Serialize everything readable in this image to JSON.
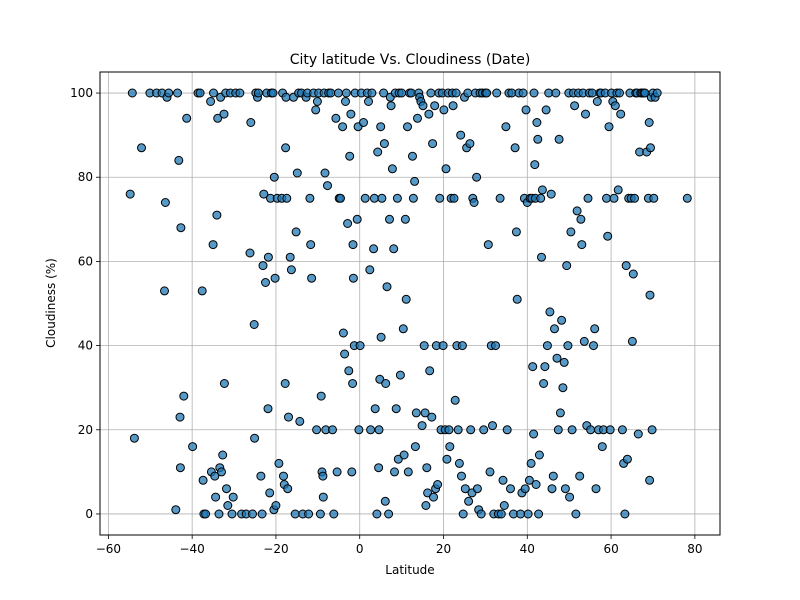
{
  "chart_data": {
    "type": "scatter",
    "title": "City latitude Vs. Cloudiness (Date)",
    "xlabel": "Latitude",
    "ylabel": "Cloudiness (%)",
    "xlim": [
      -62,
      86
    ],
    "ylim": [
      -5,
      105
    ],
    "x_ticks": [
      -60,
      -40,
      -20,
      0,
      20,
      40,
      60,
      80
    ],
    "y_ticks": [
      0,
      20,
      40,
      60,
      80,
      100
    ],
    "grid": true,
    "marker_color": "#1f77b4",
    "marker_edge_color": "#000000",
    "points": [
      [
        -54.8,
        76
      ],
      [
        -54.3,
        100
      ],
      [
        -53.8,
        18
      ],
      [
        -52.1,
        87
      ],
      [
        -50.1,
        100
      ],
      [
        -48.5,
        100
      ],
      [
        -47.2,
        100
      ],
      [
        -46.6,
        53
      ],
      [
        -46.4,
        74
      ],
      [
        -46.0,
        99
      ],
      [
        -45.6,
        100
      ],
      [
        -43.9,
        1
      ],
      [
        -43.5,
        100
      ],
      [
        -43.2,
        84
      ],
      [
        -42.9,
        23
      ],
      [
        -42.8,
        11
      ],
      [
        -42.7,
        68
      ],
      [
        -42.0,
        28
      ],
      [
        -41.3,
        94
      ],
      [
        -39.9,
        16
      ],
      [
        -38.6,
        100
      ],
      [
        -38.1,
        100
      ],
      [
        -37.6,
        53
      ],
      [
        -37.4,
        8
      ],
      [
        -37.2,
        0
      ],
      [
        -36.8,
        0
      ],
      [
        -35.6,
        98
      ],
      [
        -35.4,
        10
      ],
      [
        -35.0,
        64
      ],
      [
        -34.9,
        100
      ],
      [
        -34.6,
        9
      ],
      [
        -34.4,
        4
      ],
      [
        -34.1,
        71
      ],
      [
        -33.9,
        94
      ],
      [
        -33.6,
        0
      ],
      [
        -33.4,
        11
      ],
      [
        -33.2,
        99
      ],
      [
        -33.0,
        10
      ],
      [
        -32.7,
        14
      ],
      [
        -32.4,
        95
      ],
      [
        -32.3,
        31
      ],
      [
        -32.0,
        100
      ],
      [
        -31.8,
        6
      ],
      [
        -31.5,
        2
      ],
      [
        -30.9,
        100
      ],
      [
        -30.5,
        0
      ],
      [
        -30.2,
        4
      ],
      [
        -29.6,
        100
      ],
      [
        -28.6,
        100
      ],
      [
        -28.2,
        0
      ],
      [
        -27.1,
        0
      ],
      [
        -26.2,
        62
      ],
      [
        -26.0,
        93
      ],
      [
        -25.6,
        0
      ],
      [
        -25.2,
        45
      ],
      [
        -25.1,
        18
      ],
      [
        -24.8,
        100
      ],
      [
        -24.4,
        99
      ],
      [
        -24.2,
        100
      ],
      [
        -23.6,
        9
      ],
      [
        -23.3,
        0
      ],
      [
        -23.1,
        59
      ],
      [
        -22.9,
        76
      ],
      [
        -22.5,
        55
      ],
      [
        -22.2,
        100
      ],
      [
        -21.9,
        25
      ],
      [
        -21.8,
        61
      ],
      [
        -21.5,
        5
      ],
      [
        -21.3,
        75
      ],
      [
        -21.1,
        100
      ],
      [
        -20.7,
        100
      ],
      [
        -20.5,
        1
      ],
      [
        -20.4,
        80
      ],
      [
        -20.2,
        56
      ],
      [
        -20.0,
        2
      ],
      [
        -19.7,
        75
      ],
      [
        -19.3,
        12
      ],
      [
        -18.6,
        75
      ],
      [
        -18.4,
        100
      ],
      [
        -18.2,
        9
      ],
      [
        -18.0,
        7
      ],
      [
        -17.8,
        31
      ],
      [
        -17.7,
        87
      ],
      [
        -17.6,
        99
      ],
      [
        -17.4,
        75
      ],
      [
        -17.2,
        6
      ],
      [
        -17.0,
        23
      ],
      [
        -16.6,
        61
      ],
      [
        -16.3,
        58
      ],
      [
        -15.8,
        99
      ],
      [
        -15.4,
        0
      ],
      [
        -15.2,
        67
      ],
      [
        -14.9,
        81
      ],
      [
        -14.6,
        100
      ],
      [
        -14.3,
        22
      ],
      [
        -13.9,
        100
      ],
      [
        -13.6,
        0
      ],
      [
        -12.8,
        99
      ],
      [
        -12.5,
        100
      ],
      [
        -12.2,
        0
      ],
      [
        -11.9,
        75
      ],
      [
        -11.7,
        64
      ],
      [
        -11.5,
        56
      ],
      [
        -11.0,
        100
      ],
      [
        -10.5,
        96
      ],
      [
        -10.3,
        20
      ],
      [
        -10.1,
        98
      ],
      [
        -9.8,
        100
      ],
      [
        -9.4,
        0
      ],
      [
        -9.2,
        28
      ],
      [
        -9.0,
        10
      ],
      [
        -8.8,
        9
      ],
      [
        -8.7,
        4
      ],
      [
        -8.5,
        100
      ],
      [
        -8.3,
        81
      ],
      [
        -8.1,
        20
      ],
      [
        -7.7,
        78
      ],
      [
        -7.4,
        100
      ],
      [
        -6.9,
        100
      ],
      [
        -6.5,
        20
      ],
      [
        -6.2,
        0
      ],
      [
        -5.7,
        94
      ],
      [
        -5.4,
        10
      ],
      [
        -5.1,
        100
      ],
      [
        -4.9,
        75
      ],
      [
        -4.6,
        75
      ],
      [
        -4.1,
        92
      ],
      [
        -3.9,
        43
      ],
      [
        -3.6,
        38
      ],
      [
        -3.4,
        98
      ],
      [
        -3.2,
        100
      ],
      [
        -2.9,
        69
      ],
      [
        -2.6,
        34
      ],
      [
        -2.4,
        85
      ],
      [
        -2.1,
        95
      ],
      [
        -1.9,
        10
      ],
      [
        -1.7,
        31
      ],
      [
        -1.6,
        64
      ],
      [
        -1.5,
        56
      ],
      [
        -1.3,
        40
      ],
      [
        -1.1,
        100
      ],
      [
        -0.6,
        70
      ],
      [
        -0.4,
        92
      ],
      [
        -0.2,
        20
      ],
      [
        0.1,
        40
      ],
      [
        0.4,
        100
      ],
      [
        0.9,
        93
      ],
      [
        1.3,
        75
      ],
      [
        1.8,
        100
      ],
      [
        2.1,
        98
      ],
      [
        2.4,
        58
      ],
      [
        2.6,
        20
      ],
      [
        2.9,
        100
      ],
      [
        3.3,
        63
      ],
      [
        3.5,
        75
      ],
      [
        3.7,
        25
      ],
      [
        4.1,
        0
      ],
      [
        4.3,
        86
      ],
      [
        4.5,
        11
      ],
      [
        4.6,
        20
      ],
      [
        4.8,
        32
      ],
      [
        5.0,
        92
      ],
      [
        5.1,
        42
      ],
      [
        5.3,
        75
      ],
      [
        5.7,
        100
      ],
      [
        5.9,
        88
      ],
      [
        6.1,
        3
      ],
      [
        6.2,
        31
      ],
      [
        6.5,
        54
      ],
      [
        6.9,
        0
      ],
      [
        7.1,
        70
      ],
      [
        7.3,
        99
      ],
      [
        7.5,
        97
      ],
      [
        7.8,
        82
      ],
      [
        8.1,
        63
      ],
      [
        8.3,
        10
      ],
      [
        8.5,
        100
      ],
      [
        8.7,
        25
      ],
      [
        9.0,
        75
      ],
      [
        9.2,
        13
      ],
      [
        9.4,
        100
      ],
      [
        9.7,
        33
      ],
      [
        10.0,
        100
      ],
      [
        10.4,
        44
      ],
      [
        10.6,
        14
      ],
      [
        10.9,
        70
      ],
      [
        11.1,
        51
      ],
      [
        11.4,
        92
      ],
      [
        11.6,
        10
      ],
      [
        11.9,
        100
      ],
      [
        12.3,
        100
      ],
      [
        12.6,
        85
      ],
      [
        12.8,
        75
      ],
      [
        13.1,
        79
      ],
      [
        13.3,
        16
      ],
      [
        13.5,
        24
      ],
      [
        13.8,
        94
      ],
      [
        14.1,
        100
      ],
      [
        14.3,
        99
      ],
      [
        14.6,
        98
      ],
      [
        14.9,
        21
      ],
      [
        15.1,
        97
      ],
      [
        15.4,
        40
      ],
      [
        15.6,
        24
      ],
      [
        15.8,
        2
      ],
      [
        16.0,
        11
      ],
      [
        16.2,
        5
      ],
      [
        16.5,
        95
      ],
      [
        16.7,
        34
      ],
      [
        17.0,
        100
      ],
      [
        17.2,
        23
      ],
      [
        17.4,
        88
      ],
      [
        17.6,
        4
      ],
      [
        17.9,
        97
      ],
      [
        18.1,
        6
      ],
      [
        18.3,
        40
      ],
      [
        18.6,
        7
      ],
      [
        18.9,
        100
      ],
      [
        19.1,
        75
      ],
      [
        19.4,
        20
      ],
      [
        19.7,
        100
      ],
      [
        19.9,
        40
      ],
      [
        20.1,
        96
      ],
      [
        20.4,
        20
      ],
      [
        20.6,
        82
      ],
      [
        20.8,
        13
      ],
      [
        21.1,
        100
      ],
      [
        21.3,
        20
      ],
      [
        21.5,
        16
      ],
      [
        21.8,
        75
      ],
      [
        22.1,
        100
      ],
      [
        22.3,
        97
      ],
      [
        22.5,
        75
      ],
      [
        22.8,
        27
      ],
      [
        23.0,
        100
      ],
      [
        23.2,
        40
      ],
      [
        23.5,
        20
      ],
      [
        23.8,
        12
      ],
      [
        24.1,
        90
      ],
      [
        24.3,
        9
      ],
      [
        24.5,
        40
      ],
      [
        24.7,
        0
      ],
      [
        25.0,
        99
      ],
      [
        25.2,
        6
      ],
      [
        25.5,
        87
      ],
      [
        25.8,
        100
      ],
      [
        26.0,
        3
      ],
      [
        26.3,
        88
      ],
      [
        26.5,
        20
      ],
      [
        26.8,
        5
      ],
      [
        27.0,
        75
      ],
      [
        27.3,
        74
      ],
      [
        27.6,
        100
      ],
      [
        27.9,
        80
      ],
      [
        28.1,
        6
      ],
      [
        28.4,
        1
      ],
      [
        28.7,
        100
      ],
      [
        29.0,
        0
      ],
      [
        29.3,
        100
      ],
      [
        29.6,
        20
      ],
      [
        30.0,
        100
      ],
      [
        30.3,
        100
      ],
      [
        30.7,
        64
      ],
      [
        31.1,
        10
      ],
      [
        31.4,
        40
      ],
      [
        31.7,
        21
      ],
      [
        32.0,
        0
      ],
      [
        32.4,
        40
      ],
      [
        32.7,
        100
      ],
      [
        33.1,
        0
      ],
      [
        33.5,
        75
      ],
      [
        33.8,
        0
      ],
      [
        34.2,
        8
      ],
      [
        34.5,
        2
      ],
      [
        34.9,
        92
      ],
      [
        35.2,
        20
      ],
      [
        35.6,
        100
      ],
      [
        36.0,
        6
      ],
      [
        36.3,
        100
      ],
      [
        36.7,
        0
      ],
      [
        37.1,
        87
      ],
      [
        37.4,
        67
      ],
      [
        37.6,
        51
      ],
      [
        38.0,
        100
      ],
      [
        38.4,
        0
      ],
      [
        38.7,
        5
      ],
      [
        39.0,
        100
      ],
      [
        39.3,
        75
      ],
      [
        39.5,
        6
      ],
      [
        39.7,
        96
      ],
      [
        40.0,
        74
      ],
      [
        40.2,
        0
      ],
      [
        40.5,
        8
      ],
      [
        40.7,
        75
      ],
      [
        40.9,
        12
      ],
      [
        41.1,
        75
      ],
      [
        41.3,
        35
      ],
      [
        41.5,
        19
      ],
      [
        41.6,
        100
      ],
      [
        41.8,
        83
      ],
      [
        41.9,
        75
      ],
      [
        42.1,
        7
      ],
      [
        42.3,
        93
      ],
      [
        42.5,
        89
      ],
      [
        42.7,
        0
      ],
      [
        42.9,
        14
      ],
      [
        43.2,
        75
      ],
      [
        43.4,
        61
      ],
      [
        43.6,
        77
      ],
      [
        43.9,
        31
      ],
      [
        44.2,
        35
      ],
      [
        44.5,
        96
      ],
      [
        44.8,
        40
      ],
      [
        45.1,
        100
      ],
      [
        45.4,
        48
      ],
      [
        45.7,
        76
      ],
      [
        45.9,
        6
      ],
      [
        46.2,
        9
      ],
      [
        46.5,
        44
      ],
      [
        46.8,
        100
      ],
      [
        47.1,
        37
      ],
      [
        47.4,
        20
      ],
      [
        47.6,
        89
      ],
      [
        47.9,
        24
      ],
      [
        48.2,
        46
      ],
      [
        48.5,
        30
      ],
      [
        48.8,
        36
      ],
      [
        49.1,
        6
      ],
      [
        49.4,
        59
      ],
      [
        49.7,
        40
      ],
      [
        49.9,
        100
      ],
      [
        50.1,
        4
      ],
      [
        50.4,
        67
      ],
      [
        50.7,
        20
      ],
      [
        51.0,
        100
      ],
      [
        51.3,
        97
      ],
      [
        51.6,
        0
      ],
      [
        51.9,
        72
      ],
      [
        52.2,
        100
      ],
      [
        52.5,
        9
      ],
      [
        52.8,
        70
      ],
      [
        53.0,
        64
      ],
      [
        53.3,
        100
      ],
      [
        53.6,
        41
      ],
      [
        53.9,
        95
      ],
      [
        54.2,
        21
      ],
      [
        54.5,
        75
      ],
      [
        54.8,
        100
      ],
      [
        55.1,
        20
      ],
      [
        55.5,
        100
      ],
      [
        55.8,
        40
      ],
      [
        56.1,
        44
      ],
      [
        56.4,
        6
      ],
      [
        56.7,
        98
      ],
      [
        57.0,
        20
      ],
      [
        57.3,
        100
      ],
      [
        57.6,
        100
      ],
      [
        57.9,
        16
      ],
      [
        58.2,
        20
      ],
      [
        58.6,
        100
      ],
      [
        58.9,
        75
      ],
      [
        59.2,
        66
      ],
      [
        59.5,
        92
      ],
      [
        59.8,
        20
      ],
      [
        60.1,
        100
      ],
      [
        60.4,
        98
      ],
      [
        60.7,
        75
      ],
      [
        61.0,
        97
      ],
      [
        61.4,
        100
      ],
      [
        61.7,
        77
      ],
      [
        62.0,
        100
      ],
      [
        62.3,
        95
      ],
      [
        62.7,
        20
      ],
      [
        63.0,
        12
      ],
      [
        63.3,
        0
      ],
      [
        63.6,
        59
      ],
      [
        63.9,
        13
      ],
      [
        64.2,
        75
      ],
      [
        64.5,
        100
      ],
      [
        64.8,
        75
      ],
      [
        65.1,
        41
      ],
      [
        65.3,
        57
      ],
      [
        65.6,
        75
      ],
      [
        65.9,
        100
      ],
      [
        66.2,
        100
      ],
      [
        66.5,
        19
      ],
      [
        66.8,
        86
      ],
      [
        67.1,
        100
      ],
      [
        67.4,
        100
      ],
      [
        67.8,
        100
      ],
      [
        68.1,
        100
      ],
      [
        68.5,
        86
      ],
      [
        68.9,
        75
      ],
      [
        69.1,
        93
      ],
      [
        69.2,
        8
      ],
      [
        69.3,
        52
      ],
      [
        69.4,
        87
      ],
      [
        69.6,
        99
      ],
      [
        69.8,
        20
      ],
      [
        70.0,
        100
      ],
      [
        70.2,
        75
      ],
      [
        70.5,
        99
      ],
      [
        71.0,
        100
      ],
      [
        78.2,
        75
      ]
    ]
  }
}
